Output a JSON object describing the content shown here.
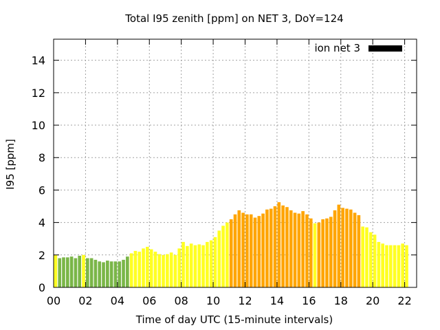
{
  "chart_data": {
    "type": "bar",
    "title": "Total I95 zenith [ppm] on NET 3, DoY=124",
    "xlabel": "Time of day UTC (15-minute intervals)",
    "ylabel": "I95 [ppm]",
    "xlim": [
      0,
      22.75
    ],
    "ylim": [
      0,
      15.3
    ],
    "x_ticks": [
      "00",
      "02",
      "04",
      "06",
      "08",
      "10",
      "12",
      "14",
      "16",
      "18",
      "20",
      "22"
    ],
    "y_ticks": [
      "0",
      "2",
      "4",
      "6",
      "8",
      "10",
      "12",
      "14"
    ],
    "grid": true,
    "legend": {
      "label": "ion net 3",
      "position": "top-right",
      "color": "#000000"
    },
    "bar_interval_hours": 0.25,
    "colors": {
      "low": "#7ab648",
      "moderate": "#ffff22",
      "elevated": "#ffa500"
    },
    "bars": [
      {
        "x": "00:00",
        "value": 2.0,
        "level": "moderate"
      },
      {
        "x": "00:15",
        "value": 1.8,
        "level": "low"
      },
      {
        "x": "00:30",
        "value": 1.85,
        "level": "low"
      },
      {
        "x": "00:45",
        "value": 1.85,
        "level": "low"
      },
      {
        "x": "01:00",
        "value": 1.9,
        "level": "low"
      },
      {
        "x": "01:15",
        "value": 1.8,
        "level": "low"
      },
      {
        "x": "01:30",
        "value": 1.95,
        "level": "low"
      },
      {
        "x": "01:45",
        "value": 2.0,
        "level": "moderate"
      },
      {
        "x": "02:00",
        "value": 1.8,
        "level": "low"
      },
      {
        "x": "02:15",
        "value": 1.8,
        "level": "low"
      },
      {
        "x": "02:30",
        "value": 1.7,
        "level": "low"
      },
      {
        "x": "02:45",
        "value": 1.6,
        "level": "low"
      },
      {
        "x": "03:00",
        "value": 1.55,
        "level": "low"
      },
      {
        "x": "03:15",
        "value": 1.65,
        "level": "low"
      },
      {
        "x": "03:30",
        "value": 1.6,
        "level": "low"
      },
      {
        "x": "03:45",
        "value": 1.6,
        "level": "low"
      },
      {
        "x": "04:00",
        "value": 1.6,
        "level": "low"
      },
      {
        "x": "04:15",
        "value": 1.7,
        "level": "low"
      },
      {
        "x": "04:30",
        "value": 1.9,
        "level": "low"
      },
      {
        "x": "04:45",
        "value": 2.1,
        "level": "moderate"
      },
      {
        "x": "05:00",
        "value": 2.25,
        "level": "moderate"
      },
      {
        "x": "05:15",
        "value": 2.2,
        "level": "moderate"
      },
      {
        "x": "05:30",
        "value": 2.4,
        "level": "moderate"
      },
      {
        "x": "05:45",
        "value": 2.5,
        "level": "moderate"
      },
      {
        "x": "06:00",
        "value": 2.35,
        "level": "moderate"
      },
      {
        "x": "06:15",
        "value": 2.2,
        "level": "moderate"
      },
      {
        "x": "06:30",
        "value": 2.05,
        "level": "moderate"
      },
      {
        "x": "06:45",
        "value": 2.0,
        "level": "moderate"
      },
      {
        "x": "07:00",
        "value": 2.05,
        "level": "moderate"
      },
      {
        "x": "07:15",
        "value": 2.15,
        "level": "moderate"
      },
      {
        "x": "07:30",
        "value": 2.0,
        "level": "moderate"
      },
      {
        "x": "07:45",
        "value": 2.4,
        "level": "moderate"
      },
      {
        "x": "08:00",
        "value": 2.8,
        "level": "moderate"
      },
      {
        "x": "08:15",
        "value": 2.55,
        "level": "moderate"
      },
      {
        "x": "08:30",
        "value": 2.7,
        "level": "moderate"
      },
      {
        "x": "08:45",
        "value": 2.6,
        "level": "moderate"
      },
      {
        "x": "09:00",
        "value": 2.65,
        "level": "moderate"
      },
      {
        "x": "09:15",
        "value": 2.6,
        "level": "moderate"
      },
      {
        "x": "09:30",
        "value": 2.8,
        "level": "moderate"
      },
      {
        "x": "09:45",
        "value": 2.9,
        "level": "moderate"
      },
      {
        "x": "10:00",
        "value": 3.1,
        "level": "moderate"
      },
      {
        "x": "10:15",
        "value": 3.5,
        "level": "moderate"
      },
      {
        "x": "10:30",
        "value": 3.8,
        "level": "moderate"
      },
      {
        "x": "10:45",
        "value": 4.0,
        "level": "moderate"
      },
      {
        "x": "11:00",
        "value": 4.2,
        "level": "elevated"
      },
      {
        "x": "11:15",
        "value": 4.5,
        "level": "elevated"
      },
      {
        "x": "11:30",
        "value": 4.75,
        "level": "elevated"
      },
      {
        "x": "11:45",
        "value": 4.6,
        "level": "elevated"
      },
      {
        "x": "12:00",
        "value": 4.5,
        "level": "elevated"
      },
      {
        "x": "12:15",
        "value": 4.5,
        "level": "elevated"
      },
      {
        "x": "12:30",
        "value": 4.3,
        "level": "elevated"
      },
      {
        "x": "12:45",
        "value": 4.4,
        "level": "elevated"
      },
      {
        "x": "13:00",
        "value": 4.55,
        "level": "elevated"
      },
      {
        "x": "13:15",
        "value": 4.8,
        "level": "elevated"
      },
      {
        "x": "13:30",
        "value": 4.85,
        "level": "elevated"
      },
      {
        "x": "13:45",
        "value": 5.0,
        "level": "elevated"
      },
      {
        "x": "14:00",
        "value": 5.25,
        "level": "elevated"
      },
      {
        "x": "14:15",
        "value": 5.05,
        "level": "elevated"
      },
      {
        "x": "14:30",
        "value": 4.95,
        "level": "elevated"
      },
      {
        "x": "14:45",
        "value": 4.75,
        "level": "elevated"
      },
      {
        "x": "15:00",
        "value": 4.6,
        "level": "elevated"
      },
      {
        "x": "15:15",
        "value": 4.55,
        "level": "elevated"
      },
      {
        "x": "15:30",
        "value": 4.7,
        "level": "elevated"
      },
      {
        "x": "15:45",
        "value": 4.5,
        "level": "elevated"
      },
      {
        "x": "16:00",
        "value": 4.25,
        "level": "elevated"
      },
      {
        "x": "16:15",
        "value": 3.95,
        "level": "moderate"
      },
      {
        "x": "16:30",
        "value": 4.0,
        "level": "elevated"
      },
      {
        "x": "16:45",
        "value": 4.2,
        "level": "elevated"
      },
      {
        "x": "17:00",
        "value": 4.25,
        "level": "elevated"
      },
      {
        "x": "17:15",
        "value": 4.35,
        "level": "elevated"
      },
      {
        "x": "17:30",
        "value": 4.75,
        "level": "elevated"
      },
      {
        "x": "17:45",
        "value": 5.1,
        "level": "elevated"
      },
      {
        "x": "18:00",
        "value": 4.9,
        "level": "elevated"
      },
      {
        "x": "18:15",
        "value": 4.85,
        "level": "elevated"
      },
      {
        "x": "18:30",
        "value": 4.8,
        "level": "elevated"
      },
      {
        "x": "18:45",
        "value": 4.6,
        "level": "elevated"
      },
      {
        "x": "19:00",
        "value": 4.45,
        "level": "elevated"
      },
      {
        "x": "19:15",
        "value": 3.75,
        "level": "moderate"
      },
      {
        "x": "19:30",
        "value": 3.7,
        "level": "moderate"
      },
      {
        "x": "19:45",
        "value": 3.4,
        "level": "moderate"
      },
      {
        "x": "20:00",
        "value": 3.25,
        "level": "moderate"
      },
      {
        "x": "20:15",
        "value": 2.8,
        "level": "moderate"
      },
      {
        "x": "20:30",
        "value": 2.7,
        "level": "moderate"
      },
      {
        "x": "20:45",
        "value": 2.6,
        "level": "moderate"
      },
      {
        "x": "21:00",
        "value": 2.6,
        "level": "moderate"
      },
      {
        "x": "21:15",
        "value": 2.6,
        "level": "moderate"
      },
      {
        "x": "21:30",
        "value": 2.6,
        "level": "moderate"
      },
      {
        "x": "21:45",
        "value": 2.7,
        "level": "moderate"
      },
      {
        "x": "22:00",
        "value": 2.6,
        "level": "moderate"
      }
    ]
  }
}
